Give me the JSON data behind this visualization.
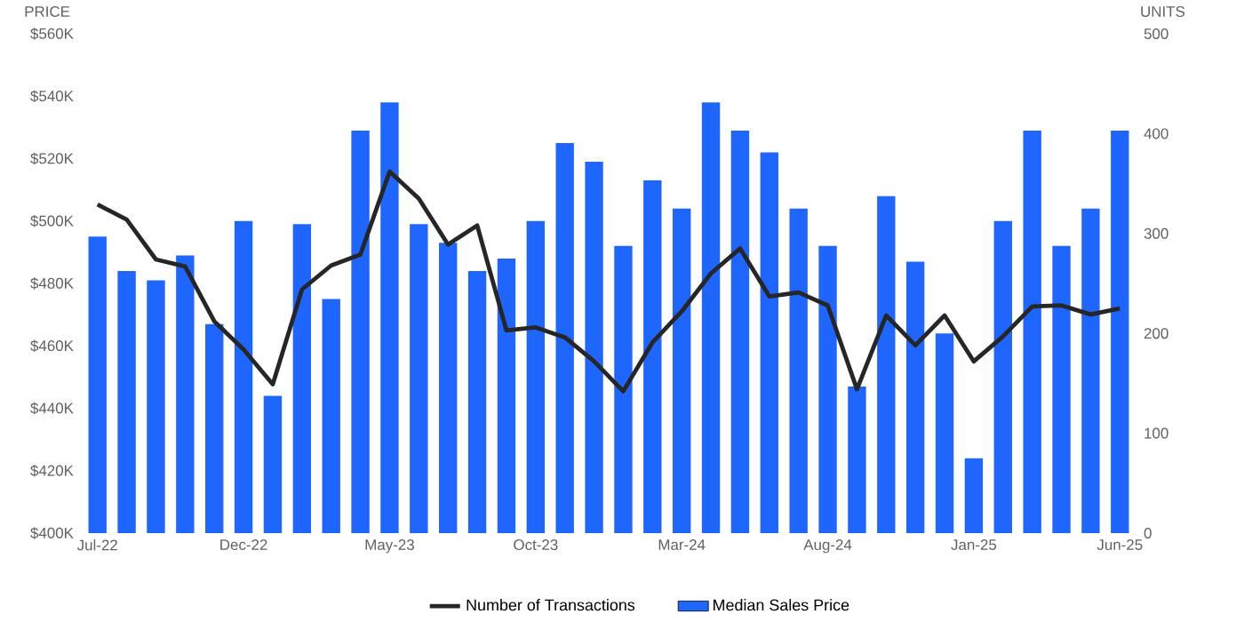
{
  "chart_data": {
    "type": "bar",
    "categories": [
      "Jul-22",
      null,
      null,
      null,
      null,
      "Dec-22",
      null,
      null,
      null,
      null,
      "May-23",
      null,
      null,
      null,
      null,
      "Oct-23",
      null,
      null,
      null,
      null,
      "Mar-24",
      null,
      null,
      null,
      null,
      "Aug-24",
      null,
      null,
      null,
      null,
      "Jan-25",
      null,
      null,
      null,
      null,
      "Jun-25"
    ],
    "series": [
      {
        "name": "Number of Transactions",
        "type": "line",
        "axis": "y2",
        "color": "#262626",
        "values": [
          329,
          314,
          274,
          267,
          212,
          184,
          149,
          244,
          268,
          279,
          362,
          335,
          289,
          308,
          203,
          206,
          196,
          172,
          142,
          191,
          222,
          260,
          285,
          237,
          241,
          228,
          144,
          218,
          188,
          218,
          172,
          197,
          227,
          228,
          219,
          225
        ]
      },
      {
        "name": "Median Sales Price",
        "color": "#1f66ff",
        "values": [
          495,
          484,
          481,
          489,
          467,
          500,
          444,
          499,
          475,
          529,
          538,
          499,
          493,
          484,
          488,
          500,
          525,
          519,
          492,
          513,
          504,
          538,
          529,
          522,
          504,
          492,
          447,
          508,
          487,
          464,
          424,
          500,
          529,
          492,
          504,
          529
        ]
      }
    ],
    "ylabel": "PRICE",
    "y2label": "UNITS",
    "ylim": [
      400,
      560
    ],
    "yticks": [
      {
        "value": 400,
        "label": "$400K"
      },
      {
        "value": 420,
        "label": "$420K"
      },
      {
        "value": 440,
        "label": "$440K"
      },
      {
        "value": 460,
        "label": "$460K"
      },
      {
        "value": 480,
        "label": "$480K"
      },
      {
        "value": 500,
        "label": "$500K"
      },
      {
        "value": 520,
        "label": "$520K"
      },
      {
        "value": 540,
        "label": "$540K"
      },
      {
        "value": 560,
        "label": "$560K"
      }
    ],
    "y2lim": [
      0,
      500
    ],
    "y2ticks": [
      0,
      100,
      200,
      300,
      400,
      500
    ],
    "legend": "bottom",
    "marker": "none",
    "line_style": "solid"
  }
}
